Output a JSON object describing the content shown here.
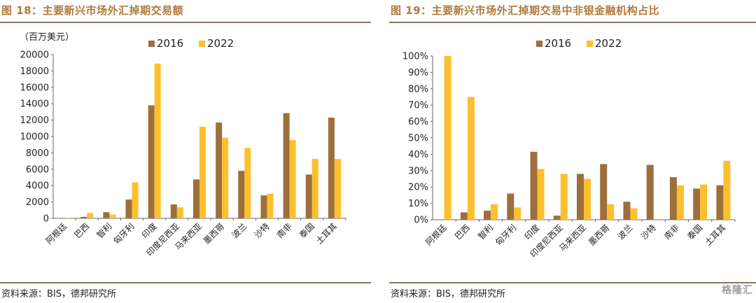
{
  "colors": {
    "series_2016": "#9c6f3b",
    "series_2022": "#fcc02f",
    "title": "#b07a3b",
    "rule": "#8a7866"
  },
  "left": {
    "title": "图 18：主要新兴市场外汇掉期交易额",
    "unit": "（百万美元）",
    "source": "资料来源：BIS，德邦研究所"
  },
  "right": {
    "title": "图 19：主要新兴市场外汇掉期交易中非银金融机构占比",
    "source": "资料来源：BIS，德邦研究所"
  },
  "watermark": "格隆汇",
  "chart_data": [
    {
      "type": "bar",
      "title": "图 18：主要新兴市场外汇掉期交易额",
      "ylabel": "（百万美元）",
      "categories": [
        "阿根廷",
        "巴西",
        "智利",
        "匈牙利",
        "印度",
        "印度尼西亚",
        "马来西亚",
        "墨西哥",
        "波兰",
        "沙特",
        "南非",
        "泰国",
        "土耳其"
      ],
      "series": [
        {
          "name": "2016",
          "values": [
            30,
            180,
            750,
            2300,
            13800,
            1700,
            4750,
            11700,
            5800,
            2800,
            12850,
            5350,
            12300
          ]
        },
        {
          "name": "2022",
          "values": [
            60,
            650,
            450,
            4400,
            18900,
            1350,
            11200,
            9850,
            8600,
            3000,
            9550,
            7250,
            7250
          ]
        }
      ],
      "ylim": [
        0,
        20000
      ],
      "yticks": [
        "0",
        "2000",
        "4000",
        "6000",
        "8000",
        "10000",
        "12000",
        "14000",
        "16000",
        "18000",
        "20000"
      ],
      "legend": "top-left",
      "grid": false
    },
    {
      "type": "bar",
      "title": "图 19：主要新兴市场外汇掉期交易中非银金融机构占比",
      "categories": [
        "阿根廷",
        "巴西",
        "智利",
        "匈牙利",
        "印度",
        "印度尼西亚",
        "马来西亚",
        "墨西哥",
        "波兰",
        "沙特",
        "南非",
        "泰国",
        "土耳其"
      ],
      "series": [
        {
          "name": "2016",
          "values": [
            0,
            4.5,
            5.5,
            16,
            41.5,
            2.5,
            28,
            34,
            11,
            33.5,
            26,
            19,
            21
          ]
        },
        {
          "name": "2022",
          "values": [
            100,
            75,
            9.5,
            7.5,
            31,
            28,
            25,
            9.5,
            7,
            0.5,
            21,
            21.5,
            36
          ]
        }
      ],
      "ylim": [
        0,
        100
      ],
      "yticks": [
        "0%",
        "10%",
        "20%",
        "30%",
        "40%",
        "50%",
        "60%",
        "70%",
        "80%",
        "90%",
        "100%"
      ],
      "legend": "top-left",
      "grid": false
    }
  ]
}
